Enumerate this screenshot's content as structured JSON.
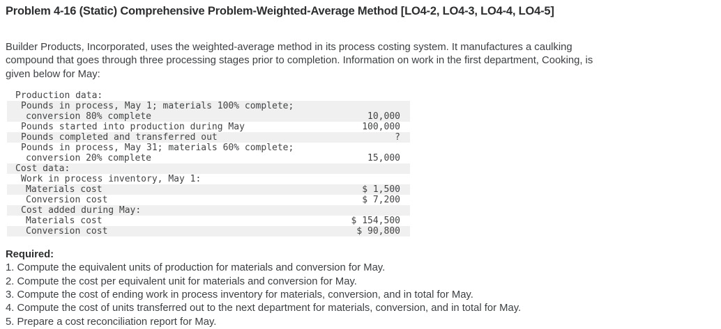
{
  "header": {
    "title": "Problem 4-16 (Static) Comprehensive Problem-Weighted-Average Method [LO4-2, LO4-3, LO4-4, LO4-5]"
  },
  "intro": {
    "lines": [
      "Builder Products, Incorporated, uses the weighted-average method in its process costing system. It manufactures a caulking",
      "compound that goes through three processing stages prior to completion. Information on work in the first department, Cooking, is",
      "given below for May:"
    ]
  },
  "data_table": {
    "shade_color": "#f0f0f0",
    "rows": [
      {
        "text": "Production data:",
        "indent": 0,
        "value": "",
        "shaded": false
      },
      {
        "text": "Pounds in process, May 1; materials 100% complete;",
        "indent": 1,
        "value": "",
        "shaded": true
      },
      {
        "text": "conversion 80% complete",
        "indent": 2,
        "value": "10,000",
        "shaded": true
      },
      {
        "text": "Pounds started into production during May",
        "indent": 1,
        "value": "100,000",
        "shaded": false
      },
      {
        "text": "Pounds completed and transferred out",
        "indent": 1,
        "value": "?",
        "shaded": true
      },
      {
        "text": "Pounds in process, May 31; materials 60% complete;",
        "indent": 1,
        "value": "",
        "shaded": false
      },
      {
        "text": "conversion 20% complete",
        "indent": 2,
        "value": "15,000",
        "shaded": false
      },
      {
        "text": "Cost data:",
        "indent": 0,
        "value": "",
        "shaded": true
      },
      {
        "text": "Work in process inventory, May 1:",
        "indent": 1,
        "value": "",
        "shaded": false
      },
      {
        "text": "Materials cost",
        "indent": 3,
        "value": "$ 1,500",
        "shaded": true
      },
      {
        "text": "Conversion cost",
        "indent": 3,
        "value": "$ 7,200",
        "shaded": false
      },
      {
        "text": "Cost added during May:",
        "indent": 1,
        "value": "",
        "shaded": true
      },
      {
        "text": "Materials cost",
        "indent": 3,
        "value": "$ 154,500",
        "shaded": false
      },
      {
        "text": "Conversion cost",
        "indent": 3,
        "value": "$ 90,800",
        "shaded": true
      }
    ]
  },
  "required": {
    "heading": "Required:",
    "items": [
      "1. Compute the equivalent units of production for materials and conversion for May.",
      "2. Compute the cost per equivalent unit for materials and conversion for May.",
      "3. Compute the cost of ending work in process inventory for materials, conversion, and in total for May.",
      "4. Compute the cost of units transferred out to the next department for materials, conversion, and in total for May.",
      "5. Prepare a cost reconciliation report for May."
    ]
  }
}
